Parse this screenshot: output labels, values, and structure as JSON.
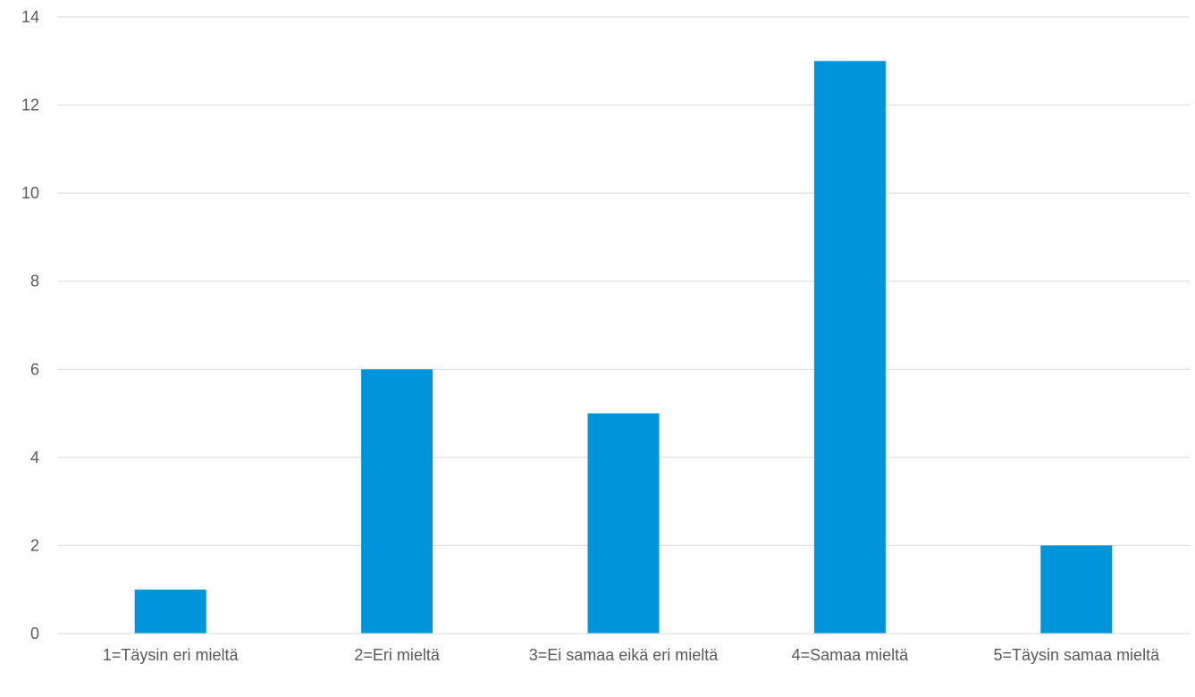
{
  "chart_data": {
    "type": "bar",
    "title": "",
    "xlabel": "",
    "ylabel": "",
    "categories": [
      "1=Täysin eri mieltä",
      "2=Eri mieltä",
      "3=Ei samaa eikä eri mieltä",
      "4=Samaa mieltä",
      "5=Täysin samaa mieltä"
    ],
    "values": [
      1,
      6,
      5,
      13,
      2
    ],
    "ylim": [
      0,
      14
    ],
    "yticks": [
      0,
      2,
      4,
      6,
      8,
      10,
      12,
      14
    ],
    "grid": true,
    "legend": "none",
    "colors": {
      "bar": "#0094DB",
      "grid": "#D9D9D9",
      "axis": "#D9D9D9",
      "text": "#595959"
    }
  }
}
